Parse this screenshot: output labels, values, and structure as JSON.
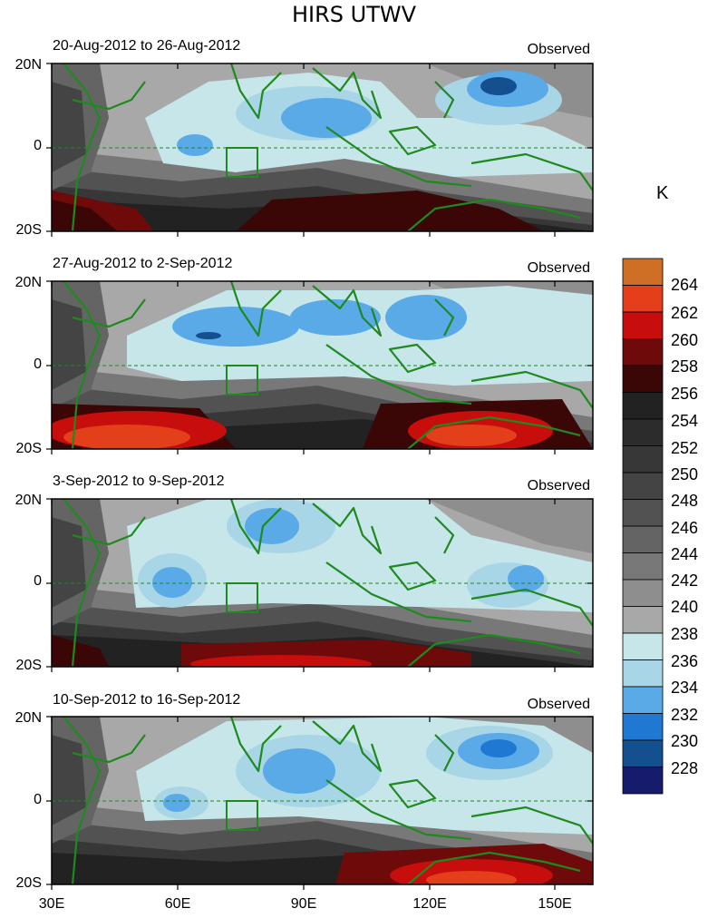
{
  "figure": {
    "title": "HIRS UTWV",
    "unit": "K",
    "x_axis_labels": [
      "30E",
      "60E",
      "90E",
      "120E",
      "150E"
    ],
    "y_axis_labels": [
      "20N",
      "0",
      "20S"
    ],
    "panels": [
      {
        "date_range": "20-Aug-2012 to 26-Aug-2012",
        "label": "Observed"
      },
      {
        "date_range": "27-Aug-2012 to 2-Sep-2012",
        "label": "Observed"
      },
      {
        "date_range": "3-Sep-2012 to 9-Sep-2012",
        "label": "Observed"
      },
      {
        "date_range": "10-Sep-2012 to 16-Sep-2012",
        "label": "Observed"
      }
    ],
    "colorbar": {
      "labels": [
        "264",
        "262",
        "260",
        "258",
        "256",
        "254",
        "252",
        "250",
        "248",
        "246",
        "244",
        "242",
        "240",
        "238",
        "236",
        "234",
        "232",
        "230",
        "228"
      ],
      "colors": [
        "#cf6e25",
        "#e23f1a",
        "#c80d0d",
        "#6e0a0a",
        "#3b0606",
        "#222222",
        "#2c2c2c",
        "#373737",
        "#444444",
        "#525252",
        "#646464",
        "#787878",
        "#8e8e8e",
        "#a8a8a8",
        "#c6e6e9",
        "#a9d6e6",
        "#5aaae8",
        "#1f78d2",
        "#145090",
        "#171b6e"
      ]
    },
    "coastline_color": "#1e8a1e"
  }
}
